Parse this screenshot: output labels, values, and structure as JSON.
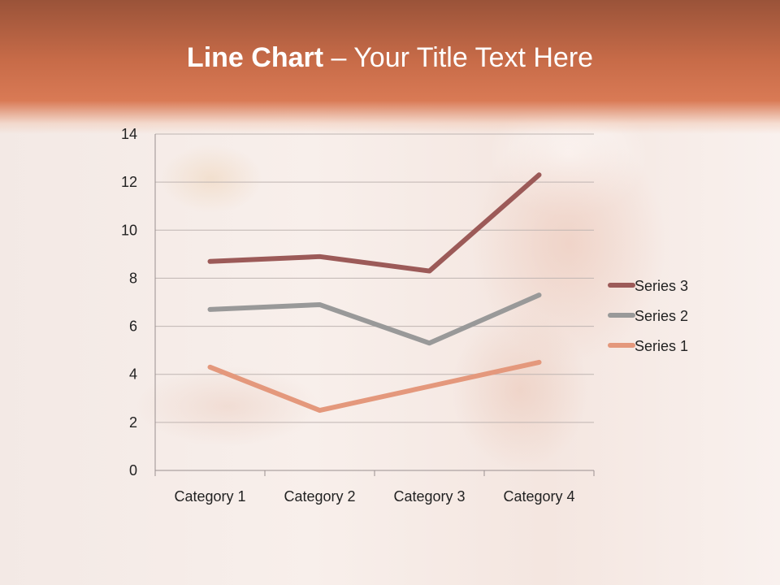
{
  "slide": {
    "title_bold": "Line Chart",
    "title_rest": " – Your Title Text Here"
  },
  "chart_data": {
    "type": "line",
    "stacked": true,
    "categories": [
      "Category 1",
      "Category 2",
      "Category 3",
      "Category 4"
    ],
    "series": [
      {
        "name": "Series 1",
        "values": [
          4.3,
          2.5,
          3.5,
          4.5
        ],
        "color": "#e4987c"
      },
      {
        "name": "Series 2",
        "values": [
          2.4,
          4.4,
          1.8,
          2.8
        ],
        "color": "#999999"
      },
      {
        "name": "Series 3",
        "values": [
          2,
          2,
          3,
          5
        ],
        "color": "#9c5a58"
      }
    ],
    "ylim": [
      0,
      14
    ],
    "yticks": [
      "0",
      "2",
      "4",
      "6",
      "8",
      "10",
      "12",
      "14"
    ],
    "grid": true,
    "legend": "right"
  }
}
